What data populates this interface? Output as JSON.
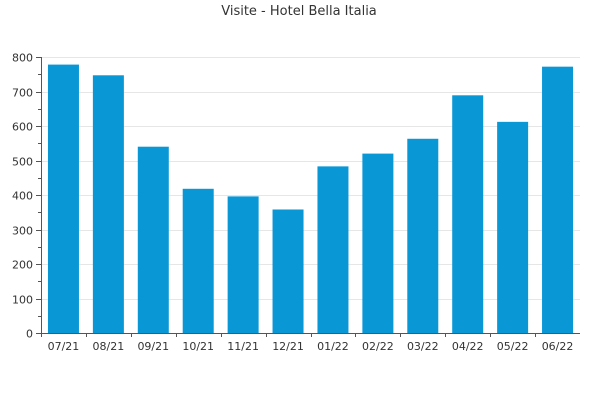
{
  "chart_data": {
    "type": "bar",
    "title": "Visite - Hotel Bella Italia",
    "xlabel": "",
    "ylabel": "",
    "categories": [
      "07/21",
      "08/21",
      "09/21",
      "10/21",
      "11/21",
      "12/21",
      "01/22",
      "02/22",
      "03/22",
      "04/22",
      "05/22",
      "06/22"
    ],
    "values": [
      778,
      747,
      540,
      418,
      396,
      358,
      483,
      520,
      563,
      689,
      612,
      772
    ],
    "ylim": [
      0,
      800
    ],
    "yticks": [
      0,
      100,
      200,
      300,
      400,
      500,
      600,
      700,
      800
    ],
    "grid": true,
    "legend": "none",
    "colors": {
      "bar": "#0a97d6",
      "grid": "#e6e6e6",
      "axis": "#555555",
      "text": "#333333"
    }
  }
}
